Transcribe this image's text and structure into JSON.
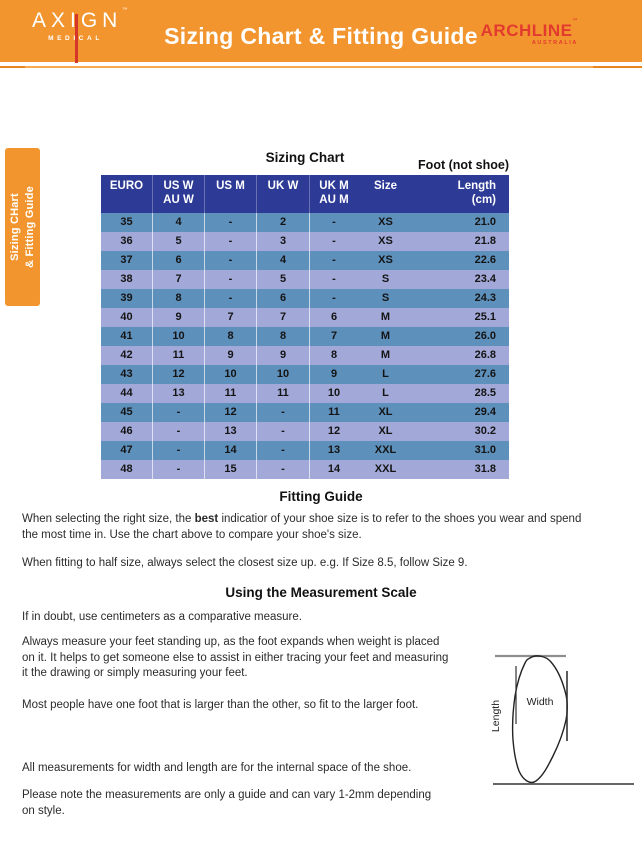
{
  "header": {
    "brand": {
      "name": "AXIGN",
      "tm": "™",
      "sub": "MEDICAL"
    },
    "title": "Sizing Chart & Fitting Guide",
    "partner": {
      "name": "ARCHLINE",
      "tm": "™",
      "sub": "AUSTRALIA"
    }
  },
  "side_tab": {
    "line1": "Sizing CHart",
    "line2": "& Fitting Guide"
  },
  "sizing_chart": {
    "title": "Sizing Chart",
    "foot_note": "Foot (not shoe)",
    "columns": [
      {
        "l1": "EURO",
        "l2": ""
      },
      {
        "l1": "US W",
        "l2": "AU W"
      },
      {
        "l1": "US M",
        "l2": ""
      },
      {
        "l1": "UK W",
        "l2": ""
      },
      {
        "l1": "UK M",
        "l2": "AU M"
      },
      {
        "l1": "Size",
        "l2": ""
      },
      {
        "l1": "Length",
        "l2": "(cm)"
      }
    ],
    "rows": [
      [
        "35",
        "4",
        "-",
        "2",
        "-",
        "XS",
        "21.0"
      ],
      [
        "36",
        "5",
        "-",
        "3",
        "-",
        "XS",
        "21.8"
      ],
      [
        "37",
        "6",
        "-",
        "4",
        "-",
        "XS",
        "22.6"
      ],
      [
        "38",
        "7",
        "-",
        "5",
        "-",
        "S",
        "23.4"
      ],
      [
        "39",
        "8",
        "-",
        "6",
        "-",
        "S",
        "24.3"
      ],
      [
        "40",
        "9",
        "7",
        "7",
        "6",
        "M",
        "25.1"
      ],
      [
        "41",
        "10",
        "8",
        "8",
        "7",
        "M",
        "26.0"
      ],
      [
        "42",
        "11",
        "9",
        "9",
        "8",
        "M",
        "26.8"
      ],
      [
        "43",
        "12",
        "10",
        "10",
        "9",
        "L",
        "27.6"
      ],
      [
        "44",
        "13",
        "11",
        "11",
        "10",
        "L",
        "28.5"
      ],
      [
        "45",
        "-",
        "12",
        "-",
        "11",
        "XL",
        "29.4"
      ],
      [
        "46",
        "-",
        "13",
        "-",
        "12",
        "XL",
        "30.2"
      ],
      [
        "47",
        "-",
        "14",
        "-",
        "13",
        "XXL",
        "31.0"
      ],
      [
        "48",
        "-",
        "15",
        "-",
        "14",
        "XXL",
        "31.8"
      ]
    ]
  },
  "fitting_guide": {
    "title": "Fitting Guide",
    "p1_prefix": "When selecting the right size, the ",
    "p1_bold": "best",
    "p1_suffix": " indicatior of your shoe size is to refer to the shoes you wear and spend",
    "p1_line2": "the most time in. Use the chart above to compare your shoe's size.",
    "p2": "When fitting to half size, always select the closest size up. e.g. If Size 8.5, follow Size 9."
  },
  "measurement": {
    "title": "Using the Measurement Scale",
    "p1": "If in doubt, use centimeters as a comparative measure.",
    "p2_lines": [
      "Always measure your feet standing up, as the foot expands when weight is placed",
      "on it. It helps to get someone else to assist in either tracing your feet and measuring",
      "it the drawing or simply measuring your feet."
    ],
    "p3": "Most people have one foot that is larger than the other, so fit to the larger foot.",
    "p4": "All measurements for width and length are for the internal space of the shoe.",
    "p5_lines": [
      "Please note the measurements are only a guide and can vary 1-2mm depending",
      "on style."
    ],
    "diagram": {
      "width_label": "Width",
      "length_label": "Length"
    }
  },
  "colors": {
    "orange": "#F2952E",
    "rule_light": "#F8AB4C",
    "rule_dark": "#E8861C",
    "table_header_navy": "#2D3B96",
    "row_blue": "#5E90BC",
    "row_lavender": "#A2A9D8",
    "brand_red": "#E23A2E",
    "text": "#262626"
  }
}
